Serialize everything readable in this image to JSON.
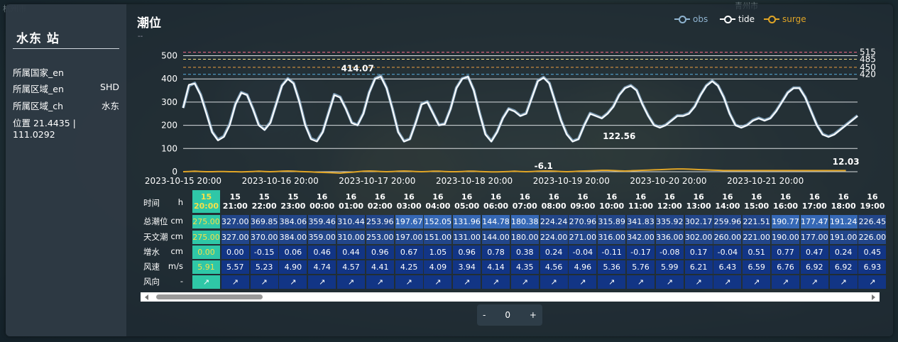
{
  "map_labels": [
    "杭州市",
    "青州市"
  ],
  "station": {
    "name": "水东 站",
    "info": [
      {
        "label": "所属国家_en",
        "value": ""
      },
      {
        "label": "所属区域_en",
        "value": "SHD"
      },
      {
        "label": "所属区域_ch",
        "value": "水东"
      },
      {
        "label": "位置 21.4435 | 111.0292",
        "value": ""
      }
    ]
  },
  "chart": {
    "title": "潮位",
    "subtitle": "--",
    "legend": [
      {
        "name": "obs",
        "color": "#8fb3cf"
      },
      {
        "name": "tide",
        "color": "#ffffff"
      },
      {
        "name": "surge",
        "color": "#e0a526"
      }
    ]
  },
  "chart_data": {
    "type": "line",
    "y_ticks": [
      0,
      100,
      200,
      300,
      400,
      500
    ],
    "ylim": [
      0,
      520
    ],
    "x_ticks": [
      "2023-10-15 20:00",
      "2023-10-16 20:00",
      "2023-10-17 20:00",
      "2023-10-18 20:00",
      "2023-10-19 20:00",
      "2023-10-20 20:00",
      "2023-10-21 20:00"
    ],
    "thresholds": [
      {
        "value": 515,
        "label": "515",
        "color": "#ff6b8a"
      },
      {
        "value": 485,
        "label": "485",
        "color": "#f0e08a"
      },
      {
        "value": 450,
        "label": "450",
        "color": "#f0a040"
      },
      {
        "value": 420,
        "label": "420",
        "color": "#5ab0e0"
      }
    ],
    "annotations": [
      {
        "text": "414.07",
        "x_index": 30,
        "y": 414
      },
      {
        "text": "122.56",
        "x_index": 75,
        "y": 123
      },
      {
        "text": "-6.1",
        "x_index": 62,
        "y": -6
      },
      {
        "text": "12.03",
        "x_index": 114,
        "y": 12
      }
    ],
    "series": [
      {
        "name": "tide",
        "color": "#ffffff",
        "values": [
          275,
          375,
          380,
          330,
          250,
          170,
          135,
          150,
          200,
          290,
          340,
          330,
          270,
          200,
          180,
          210,
          290,
          370,
          400,
          380,
          300,
          200,
          140,
          130,
          170,
          250,
          330,
          320,
          270,
          210,
          200,
          250,
          340,
          400,
          410,
          360,
          270,
          170,
          130,
          140,
          210,
          290,
          300,
          250,
          200,
          205,
          270,
          360,
          400,
          410,
          350,
          250,
          160,
          130,
          170,
          230,
          270,
          260,
          240,
          250,
          320,
          390,
          405,
          380,
          300,
          220,
          160,
          130,
          140,
          200,
          250,
          240,
          230,
          250,
          280,
          330,
          360,
          370,
          350,
          290,
          240,
          200,
          190,
          200,
          220,
          240,
          240,
          250,
          280,
          330,
          370,
          390,
          370,
          320,
          250,
          200,
          190,
          200,
          220,
          230,
          220,
          230,
          260,
          300,
          340,
          360,
          360,
          320,
          260,
          200,
          160,
          150,
          160,
          180,
          200,
          220,
          240
        ]
      },
      {
        "name": "obs",
        "color": "#8fb3cf",
        "values": [
          275,
          370,
          382,
          333,
          255,
          172,
          138,
          153,
          205,
          292,
          342,
          332,
          272,
          203,
          182,
          213,
          292,
          372,
          402,
          382,
          303,
          203,
          143,
          133,
          172,
          252,
          333,
          322,
          272,
          212,
          202,
          252,
          342,
          402,
          414,
          362,
          272,
          172,
          132,
          142,
          212,
          292,
          302,
          252,
          202,
          207,
          272,
          362,
          402,
          410,
          352,
          252,
          163,
          132,
          172,
          232,
          272,
          262,
          242,
          252,
          322,
          392,
          407,
          382,
          302,
          222,
          163,
          132,
          142,
          202,
          252,
          242,
          232,
          252,
          282,
          332,
          362,
          372,
          352,
          292,
          242,
          202,
          192,
          202,
          222,
          242,
          242,
          252,
          282,
          332,
          372,
          392,
          372,
          322,
          252,
          202,
          192,
          202,
          222,
          232,
          222,
          232,
          262,
          302,
          342,
          362,
          362,
          322,
          262,
          202,
          162,
          152,
          162,
          182,
          202,
          222,
          242
        ]
      },
      {
        "name": "surge",
        "color": "#e0a526",
        "values": [
          0,
          1,
          2,
          1,
          0,
          0,
          1,
          1,
          0,
          0,
          -1,
          0,
          1,
          2,
          1,
          0,
          1,
          2,
          3,
          2,
          1,
          0,
          -1,
          -2,
          -3,
          -4,
          -5,
          -6,
          -4,
          -2,
          0,
          2,
          3,
          2,
          1,
          0,
          1,
          2,
          3,
          2,
          1,
          0,
          1,
          2,
          2,
          1,
          0,
          0,
          1,
          2,
          2,
          1,
          0,
          -1,
          -1,
          0,
          1,
          2,
          1,
          0,
          1,
          2,
          3,
          3,
          2,
          1,
          0,
          1,
          2,
          3,
          4,
          5,
          6,
          6,
          5,
          4,
          3,
          4,
          5,
          6,
          7,
          8,
          9,
          10,
          11,
          12,
          12,
          11,
          10,
          9,
          8,
          7,
          6,
          5,
          5,
          5,
          5,
          5,
          5,
          5,
          5,
          5,
          5,
          5,
          5,
          5,
          5,
          5,
          5,
          5,
          5,
          5,
          5,
          5,
          5
        ]
      }
    ]
  },
  "table": {
    "row_labels": [
      {
        "label": "时间",
        "unit": "h"
      },
      {
        "label": "总潮位",
        "unit": "cm"
      },
      {
        "label": "天文潮",
        "unit": "cm"
      },
      {
        "label": "增水",
        "unit": "cm"
      },
      {
        "label": "风速",
        "unit": "m/s"
      },
      {
        "label": "风向",
        "unit": "-"
      }
    ],
    "columns": [
      {
        "day": "15",
        "time": "20:00",
        "total": "275.00",
        "astro": "275.00",
        "surge": "0.00",
        "wind": "5.91",
        "dir": "↗"
      },
      {
        "day": "15",
        "time": "21:00",
        "total": "327.00",
        "astro": "327.00",
        "surge": "0.00",
        "wind": "5.57",
        "dir": "↗"
      },
      {
        "day": "15",
        "time": "22:00",
        "total": "369.85",
        "astro": "370.00",
        "surge": "-0.15",
        "wind": "5.23",
        "dir": "↗"
      },
      {
        "day": "15",
        "time": "23:00",
        "total": "384.06",
        "astro": "384.00",
        "surge": "0.06",
        "wind": "4.90",
        "dir": "↗"
      },
      {
        "day": "16",
        "time": "00:00",
        "total": "359.46",
        "astro": "359.00",
        "surge": "0.46",
        "wind": "4.74",
        "dir": "↗"
      },
      {
        "day": "16",
        "time": "01:00",
        "total": "310.44",
        "astro": "310.00",
        "surge": "0.44",
        "wind": "4.57",
        "dir": "↗"
      },
      {
        "day": "16",
        "time": "02:00",
        "total": "253.96",
        "astro": "253.00",
        "surge": "0.96",
        "wind": "4.41",
        "dir": "↗"
      },
      {
        "day": "16",
        "time": "03:00",
        "total": "197.67",
        "astro": "197.00",
        "surge": "0.67",
        "wind": "4.25",
        "dir": "↗"
      },
      {
        "day": "16",
        "time": "04:00",
        "total": "152.05",
        "astro": "151.00",
        "surge": "1.05",
        "wind": "4.09",
        "dir": "↗"
      },
      {
        "day": "16",
        "time": "05:00",
        "total": "131.96",
        "astro": "131.00",
        "surge": "0.96",
        "wind": "3.94",
        "dir": "↗"
      },
      {
        "day": "16",
        "time": "06:00",
        "total": "144.78",
        "astro": "144.00",
        "surge": "0.78",
        "wind": "4.14",
        "dir": "↗"
      },
      {
        "day": "16",
        "time": "07:00",
        "total": "180.38",
        "astro": "180.00",
        "surge": "0.38",
        "wind": "4.35",
        "dir": "↗"
      },
      {
        "day": "16",
        "time": "08:00",
        "total": "224.24",
        "astro": "224.00",
        "surge": "0.24",
        "wind": "4.56",
        "dir": "↗"
      },
      {
        "day": "16",
        "time": "09:00",
        "total": "270.96",
        "astro": "271.00",
        "surge": "-0.04",
        "wind": "4.96",
        "dir": "↗"
      },
      {
        "day": "16",
        "time": "10:00",
        "total": "315.89",
        "astro": "316.00",
        "surge": "-0.11",
        "wind": "5.36",
        "dir": "↗"
      },
      {
        "day": "16",
        "time": "11:00",
        "total": "341.83",
        "astro": "342.00",
        "surge": "-0.17",
        "wind": "5.76",
        "dir": "↗"
      },
      {
        "day": "16",
        "time": "12:00",
        "total": "335.92",
        "astro": "336.00",
        "surge": "-0.08",
        "wind": "5.99",
        "dir": "↗"
      },
      {
        "day": "16",
        "time": "13:00",
        "total": "302.17",
        "astro": "302.00",
        "surge": "0.17",
        "wind": "6.21",
        "dir": "↗"
      },
      {
        "day": "16",
        "time": "14:00",
        "total": "259.96",
        "astro": "260.00",
        "surge": "-0.04",
        "wind": "6.43",
        "dir": "↗"
      },
      {
        "day": "16",
        "time": "15:00",
        "total": "221.51",
        "astro": "221.00",
        "surge": "0.51",
        "wind": "6.59",
        "dir": "↗"
      },
      {
        "day": "16",
        "time": "16:00",
        "total": "190.77",
        "astro": "190.00",
        "surge": "0.77",
        "wind": "6.76",
        "dir": "↗"
      },
      {
        "day": "16",
        "time": "17:00",
        "total": "177.47",
        "astro": "177.00",
        "surge": "0.47",
        "wind": "6.92",
        "dir": "↗"
      },
      {
        "day": "16",
        "time": "18:00",
        "total": "191.24",
        "astro": "191.00",
        "surge": "0.24",
        "wind": "6.92",
        "dir": "↗"
      },
      {
        "day": "16",
        "time": "19:00",
        "total": "226.45",
        "astro": "226.00",
        "surge": "0.45",
        "wind": "6.93",
        "dir": "↗"
      }
    ]
  },
  "stepper": {
    "minus": "-",
    "value": "0",
    "plus": "+"
  }
}
